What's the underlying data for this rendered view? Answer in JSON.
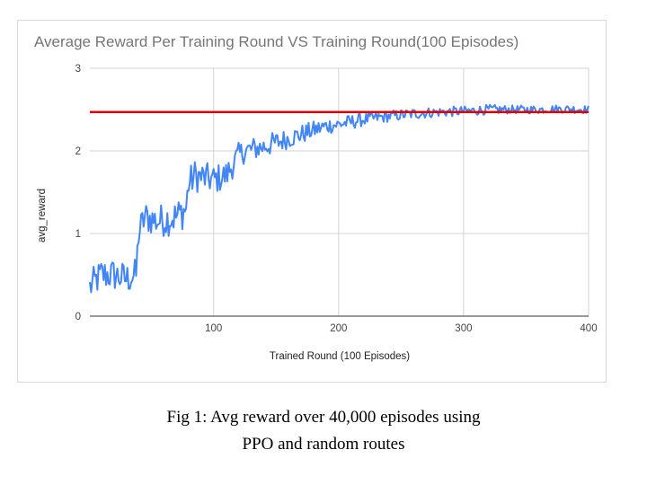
{
  "chart_data": {
    "type": "line",
    "title": "Average Reward Per Training Round VS Training Round(100 Episodes)",
    "xlabel": "Trained Round (100 Episodes)",
    "ylabel": "avg_reward",
    "xlim": [
      1,
      400
    ],
    "ylim": [
      0,
      3
    ],
    "x_ticks": [
      100,
      200,
      300,
      400
    ],
    "y_ticks": [
      0,
      1,
      2,
      3
    ],
    "grid": true,
    "legend": "none",
    "series": [
      {
        "color": "#4285f4",
        "style": "noisy line",
        "trend_x": [
          1,
          10,
          20,
          30,
          38,
          40,
          45,
          55,
          70,
          78,
          80,
          85,
          100,
          110,
          120,
          125,
          140,
          150,
          160,
          170,
          180,
          190,
          200,
          210,
          220,
          240,
          260,
          280,
          300,
          320,
          340,
          360,
          380,
          400
        ],
        "trend_y": [
          0.35,
          0.5,
          0.5,
          0.45,
          0.5,
          1.0,
          1.2,
          1.15,
          1.2,
          1.3,
          1.6,
          1.7,
          1.65,
          1.7,
          1.95,
          2.0,
          2.05,
          2.1,
          2.15,
          2.2,
          2.25,
          2.3,
          2.32,
          2.35,
          2.38,
          2.42,
          2.45,
          2.47,
          2.48,
          2.5,
          2.5,
          2.5,
          2.51,
          2.5
        ],
        "noise_amplitude": [
          0.2,
          0.2,
          0.2,
          0.2,
          0.2,
          0.2,
          0.2,
          0.2,
          0.22,
          0.22,
          0.2,
          0.2,
          0.18,
          0.18,
          0.15,
          0.15,
          0.14,
          0.14,
          0.12,
          0.12,
          0.11,
          0.1,
          0.09,
          0.09,
          0.08,
          0.07,
          0.07,
          0.06,
          0.06,
          0.06,
          0.05,
          0.05,
          0.05,
          0.05
        ]
      },
      {
        "color": "#e00000",
        "style": "reference line",
        "x": [
          1,
          400
        ],
        "y": [
          2.47,
          2.47
        ]
      }
    ]
  },
  "caption": {
    "line1": "Fig 1: Avg reward over 40,000 episodes using",
    "line2": "PPO and random routes"
  }
}
